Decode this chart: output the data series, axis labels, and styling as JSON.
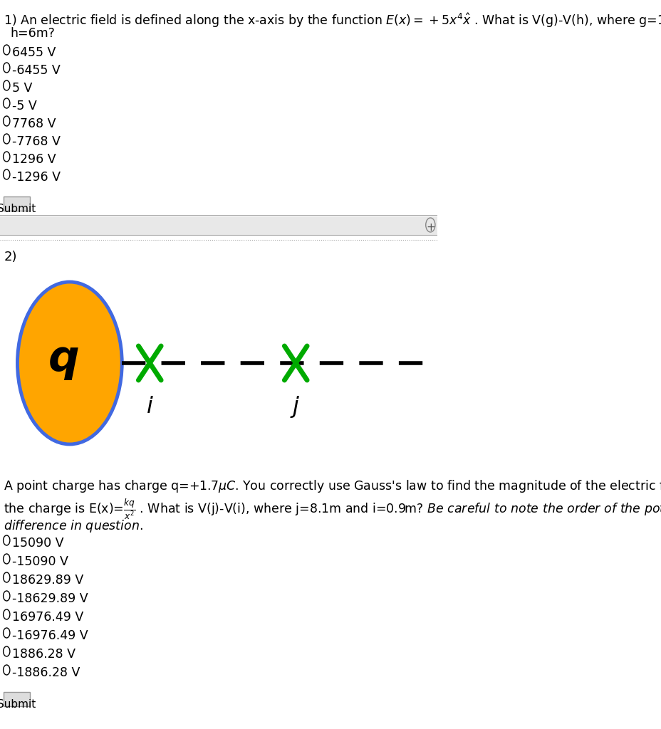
{
  "bg_color": "#ffffff",
  "q1_options": [
    "6455 V",
    "-6455 V",
    "5 V",
    "-5 V",
    "7768 V",
    "-7768 V",
    "1296 V",
    "-1296 V"
  ],
  "q2_circle_color": "#FFA500",
  "q2_circle_edge_color": "#4169E1",
  "q2_cross_color": "#00AA00",
  "q2_options": [
    "15090 V",
    "-15090 V",
    "18629.89 V",
    "-18629.89 V",
    "16976.49 V",
    "-16976.49 V",
    "1886.28 V",
    "-1886.28 V"
  ],
  "submit_bg": "#dddddd",
  "submit_text": "Submit",
  "toolbar_bg": "#e8e8e8"
}
